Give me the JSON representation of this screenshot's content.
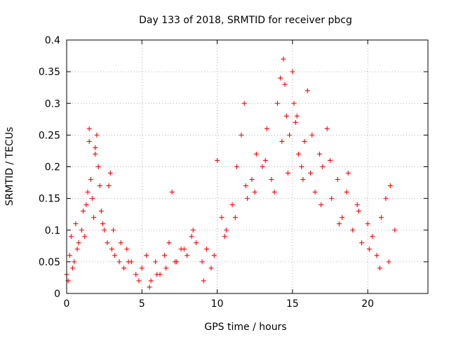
{
  "chart_data": {
    "type": "scatter",
    "title": "Day 133 of 2018, SRMTID for receiver pbcg",
    "xlabel": "GPS time / hours",
    "ylabel": "SRMTID / TECUs",
    "xlim": [
      0,
      24
    ],
    "ylim": [
      0,
      0.4
    ],
    "grid": true,
    "marker": "+",
    "marker_color": "#ff0000",
    "x_ticks": [
      0,
      5,
      10,
      15,
      20
    ],
    "x_tick_labels": [
      "0",
      "5",
      "10",
      "15",
      "20"
    ],
    "y_ticks": [
      0,
      0.05,
      0.1,
      0.15,
      0.2,
      0.25,
      0.3,
      0.35,
      0.4
    ],
    "y_tick_labels": [
      "0",
      "0.05",
      "0.1",
      "0.15",
      "0.2",
      "0.25",
      "0.3",
      "0.35",
      "0.4"
    ],
    "series": [
      {
        "name": "SRMTID",
        "x": [
          0.0,
          0.2,
          0.3,
          0.5,
          0.6,
          0.8,
          1.0,
          1.1,
          1.2,
          1.3,
          1.4,
          1.5,
          1.6,
          1.7,
          1.8,
          1.9,
          2.0,
          2.1,
          2.2,
          2.3,
          2.5,
          2.7,
          2.9,
          3.0,
          3.2,
          3.5,
          3.8,
          4.0,
          4.3,
          4.6,
          5.0,
          5.3,
          5.6,
          5.9,
          6.2,
          6.5,
          6.8,
          7.0,
          7.3,
          7.6,
          8.0,
          8.3,
          8.6,
          9.0,
          9.3,
          9.6,
          10.0,
          10.3,
          10.6,
          11.0,
          11.3,
          11.6,
          11.8,
          12.0,
          12.3,
          12.6,
          13.0,
          13.3,
          13.6,
          14.0,
          14.2,
          14.4,
          14.5,
          14.6,
          14.8,
          15.0,
          15.1,
          15.2,
          15.4,
          15.6,
          15.8,
          16.0,
          16.2,
          16.5,
          16.8,
          17.0,
          17.3,
          17.6,
          18.0,
          18.3,
          18.6,
          19.0,
          19.3,
          19.6,
          20.0,
          20.3,
          20.6,
          20.9,
          21.2,
          21.5,
          21.8,
          0.1,
          0.4,
          0.7,
          1.5,
          1.9,
          2.1,
          2.4,
          2.8,
          3.1,
          3.6,
          4.1,
          4.8,
          5.5,
          6.0,
          6.6,
          7.2,
          7.8,
          8.4,
          9.1,
          9.8,
          10.5,
          11.2,
          11.9,
          12.5,
          13.2,
          13.8,
          14.3,
          14.7,
          15.3,
          15.7,
          16.3,
          16.9,
          17.5,
          18.1,
          18.7,
          19.4,
          20.1,
          20.8,
          21.4
        ],
        "y": [
          0.03,
          0.06,
          0.09,
          0.05,
          0.11,
          0.08,
          0.1,
          0.13,
          0.09,
          0.14,
          0.16,
          0.26,
          0.18,
          0.15,
          0.12,
          0.22,
          0.25,
          0.2,
          0.17,
          0.13,
          0.1,
          0.08,
          0.19,
          0.07,
          0.06,
          0.05,
          0.04,
          0.07,
          0.05,
          0.03,
          0.04,
          0.06,
          0.02,
          0.05,
          0.03,
          0.06,
          0.08,
          0.16,
          0.05,
          0.07,
          0.06,
          0.09,
          0.08,
          0.05,
          0.07,
          0.04,
          0.21,
          0.12,
          0.1,
          0.14,
          0.2,
          0.25,
          0.3,
          0.15,
          0.18,
          0.22,
          0.2,
          0.26,
          0.18,
          0.3,
          0.34,
          0.37,
          0.33,
          0.28,
          0.25,
          0.35,
          0.3,
          0.27,
          0.22,
          0.2,
          0.24,
          0.32,
          0.19,
          0.16,
          0.22,
          0.2,
          0.26,
          0.15,
          0.18,
          0.12,
          0.16,
          0.1,
          0.14,
          0.08,
          0.11,
          0.09,
          0.06,
          0.12,
          0.15,
          0.17,
          0.1,
          0.02,
          0.04,
          0.07,
          0.24,
          0.23,
          0.2,
          0.11,
          0.17,
          0.1,
          0.08,
          0.05,
          0.02,
          0.01,
          0.03,
          0.04,
          0.05,
          0.07,
          0.1,
          0.02,
          0.06,
          0.09,
          0.12,
          0.17,
          0.16,
          0.21,
          0.16,
          0.24,
          0.19,
          0.28,
          0.18,
          0.25,
          0.14,
          0.21,
          0.11,
          0.19,
          0.13,
          0.07,
          0.04,
          0.05
        ]
      }
    ]
  }
}
